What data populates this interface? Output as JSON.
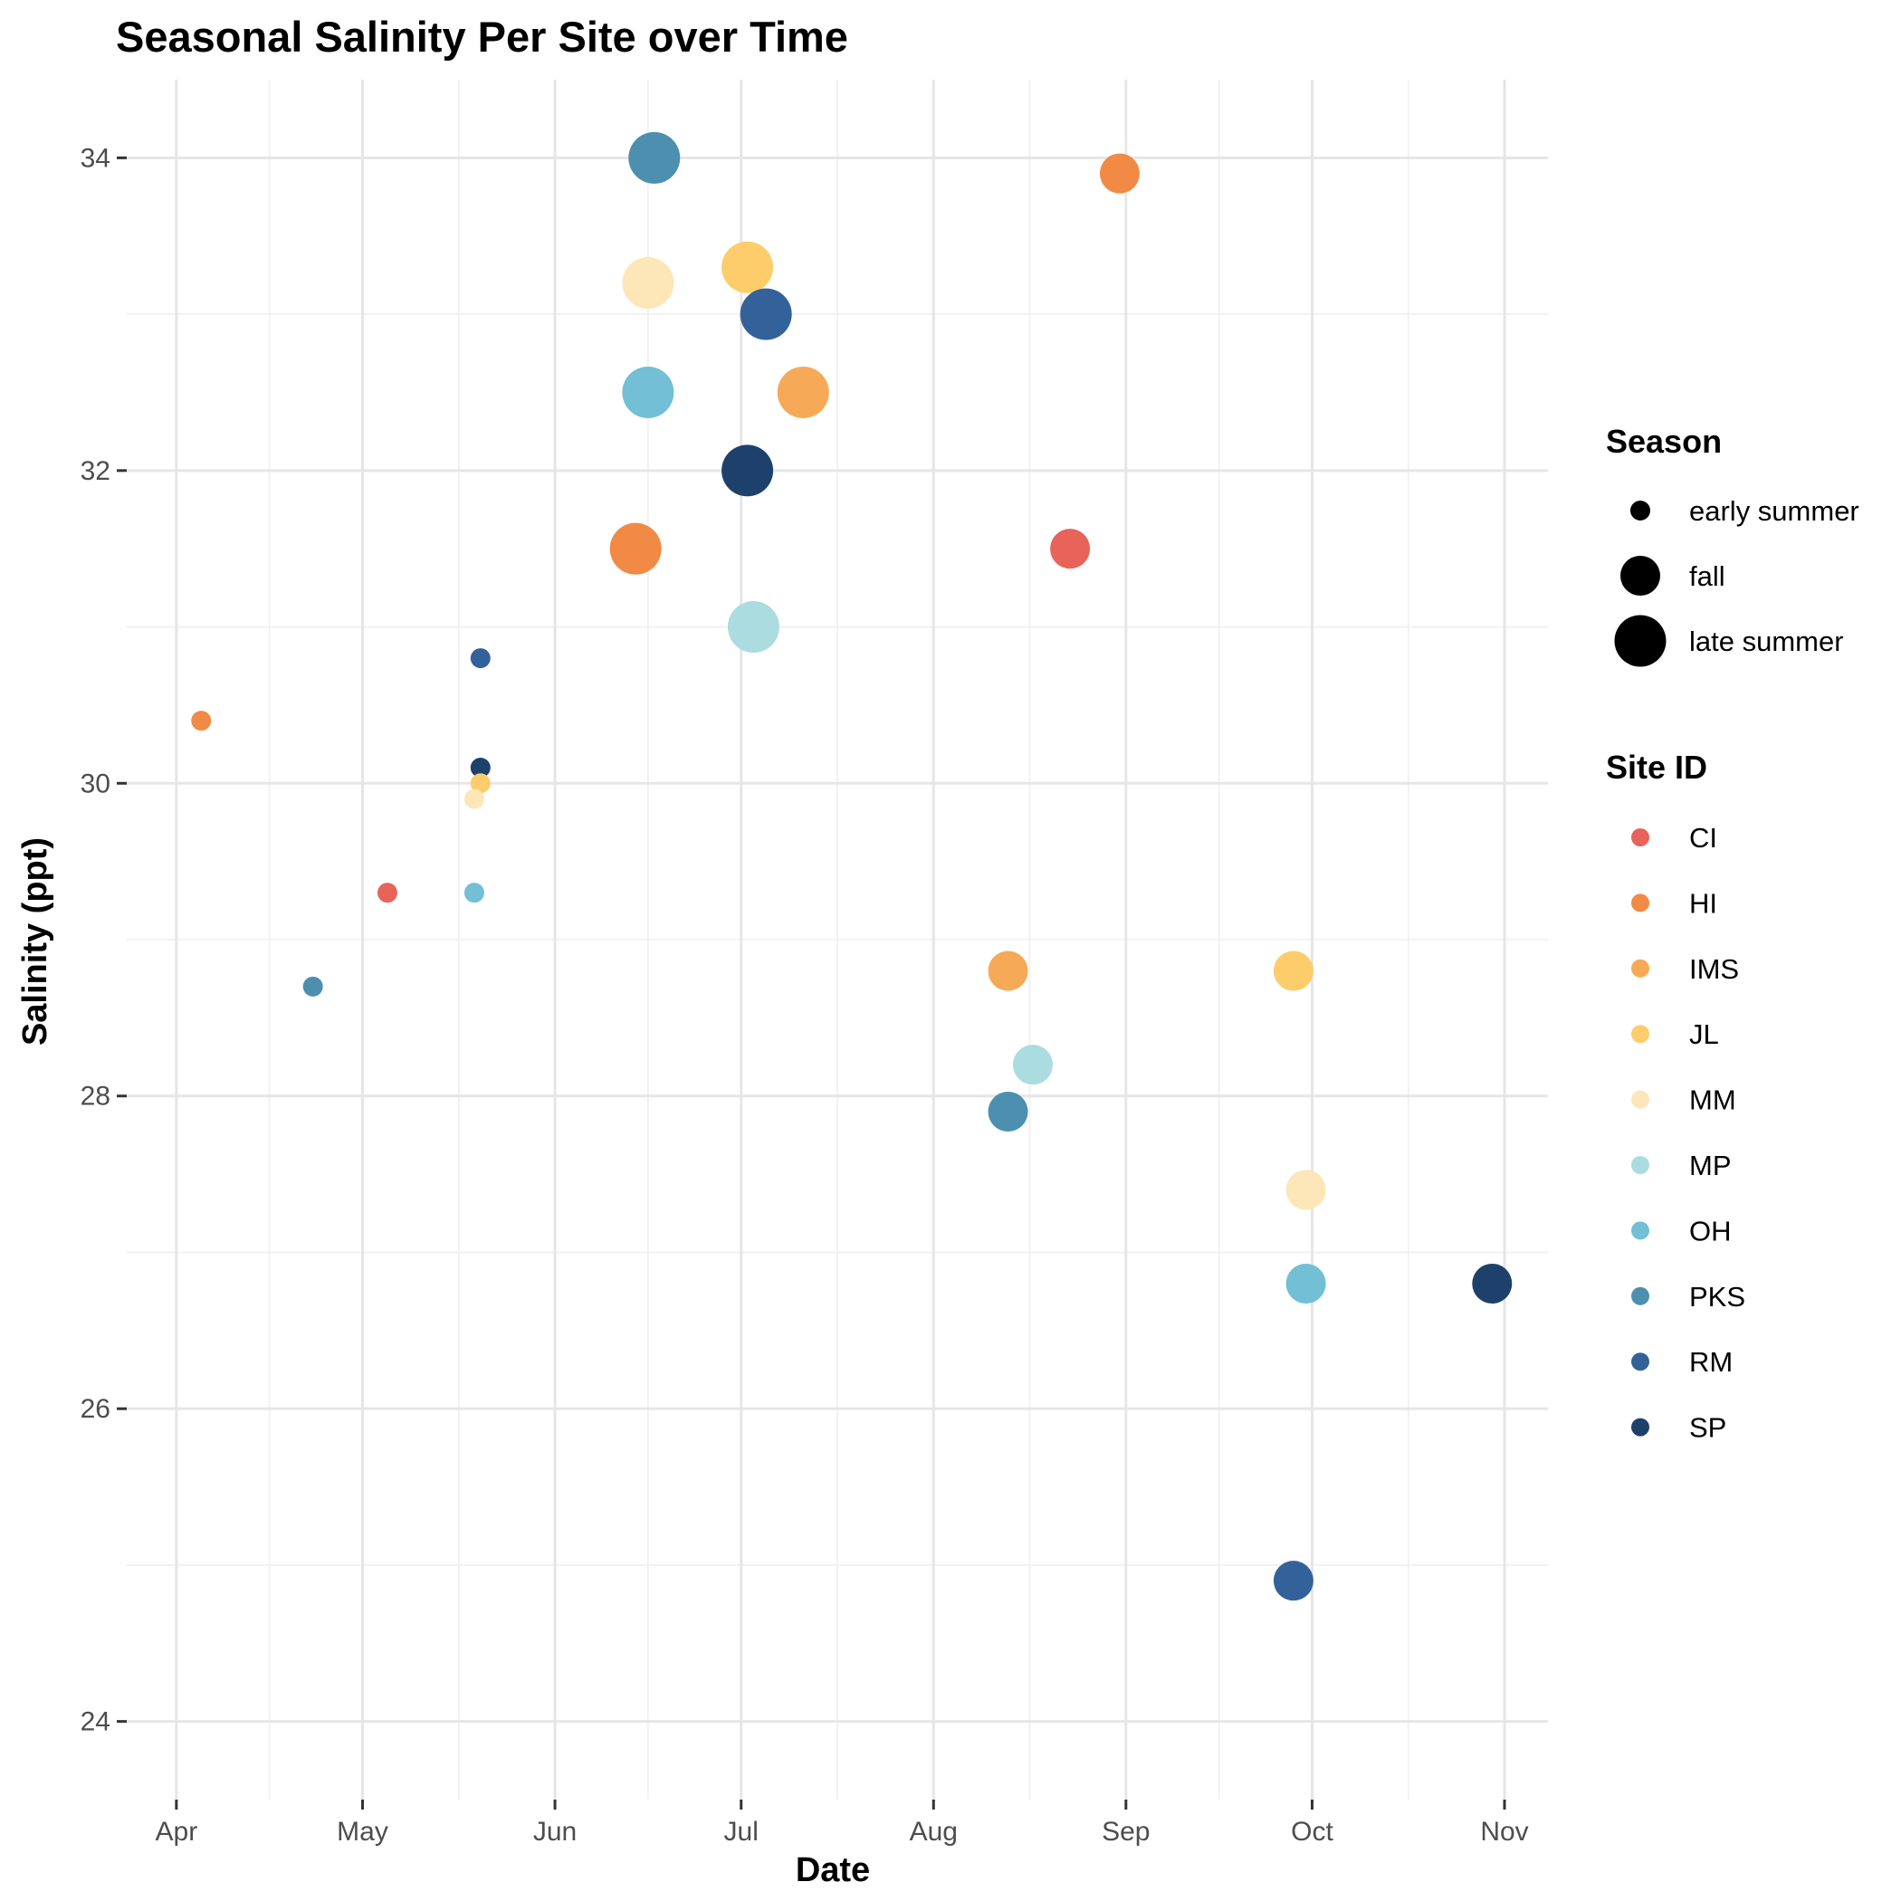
{
  "chart_data": {
    "type": "scatter",
    "title": "Seasonal Salinity Per Site over Time",
    "xlabel": "Date",
    "ylabel": "Salinity (ppt)",
    "x_ticks": [
      "Apr",
      "May",
      "Jun",
      "Jul",
      "Aug",
      "Sep",
      "Oct",
      "Nov"
    ],
    "x_tick_dates": [
      "2023-04-01",
      "2023-05-01",
      "2023-06-01",
      "2023-07-01",
      "2023-08-01",
      "2023-09-01",
      "2023-10-01",
      "2023-11-01"
    ],
    "y_ticks": [
      24,
      26,
      28,
      30,
      32,
      34
    ],
    "xlim": [
      "2023-03-24",
      "2023-11-08"
    ],
    "ylim": [
      23.5,
      34.5
    ],
    "grid": true,
    "legend_placement": "right",
    "size_legend": {
      "title": "Season",
      "entries": [
        {
          "label": "early summer",
          "key": "early summer"
        },
        {
          "label": "fall",
          "key": "fall"
        },
        {
          "label": "late summer",
          "key": "late summer"
        }
      ]
    },
    "color_legend": {
      "title": "Site ID",
      "entries": [
        {
          "label": "CI",
          "color": "#e8635a"
        },
        {
          "label": "HI",
          "color": "#f08a45"
        },
        {
          "label": "IMS",
          "color": "#f6aa58"
        },
        {
          "label": "JL",
          "color": "#fdcd6b"
        },
        {
          "label": "MM",
          "color": "#fde6b8"
        },
        {
          "label": "MP",
          "color": "#abdcdf"
        },
        {
          "label": "OH",
          "color": "#72bfd6"
        },
        {
          "label": "PKS",
          "color": "#4d8fae"
        },
        {
          "label": "RM",
          "color": "#33629a"
        },
        {
          "label": "SP",
          "color": "#1e416c"
        }
      ]
    },
    "points": [
      {
        "site": "HI",
        "date": "2023-04-05",
        "salinity": 30.4,
        "season": "early summer"
      },
      {
        "site": "PKS",
        "date": "2023-04-23",
        "salinity": 28.7,
        "season": "early summer"
      },
      {
        "site": "CI",
        "date": "2023-05-05",
        "salinity": 29.3,
        "season": "early summer"
      },
      {
        "site": "RM",
        "date": "2023-05-20",
        "salinity": 30.8,
        "season": "early summer"
      },
      {
        "site": "SP",
        "date": "2023-05-20",
        "salinity": 30.1,
        "season": "early summer"
      },
      {
        "site": "JL",
        "date": "2023-05-20",
        "salinity": 30.0,
        "season": "early summer"
      },
      {
        "site": "MM",
        "date": "2023-05-19",
        "salinity": 29.9,
        "season": "early summer"
      },
      {
        "site": "OH",
        "date": "2023-05-19",
        "salinity": 29.3,
        "season": "early summer"
      },
      {
        "site": "PKS",
        "date": "2023-06-17",
        "salinity": 34.0,
        "season": "late summer"
      },
      {
        "site": "MM",
        "date": "2023-06-16",
        "salinity": 33.2,
        "season": "late summer"
      },
      {
        "site": "OH",
        "date": "2023-06-16",
        "salinity": 32.5,
        "season": "late summer"
      },
      {
        "site": "HI",
        "date": "2023-06-14",
        "salinity": 31.5,
        "season": "late summer"
      },
      {
        "site": "JL",
        "date": "2023-07-02",
        "salinity": 33.3,
        "season": "late summer"
      },
      {
        "site": "RM",
        "date": "2023-07-05",
        "salinity": 33.0,
        "season": "late summer"
      },
      {
        "site": "IMS",
        "date": "2023-07-11",
        "salinity": 32.5,
        "season": "late summer"
      },
      {
        "site": "SP",
        "date": "2023-07-02",
        "salinity": 32.0,
        "season": "late summer"
      },
      {
        "site": "MP",
        "date": "2023-07-03",
        "salinity": 31.0,
        "season": "late summer"
      },
      {
        "site": "HI",
        "date": "2023-08-31",
        "salinity": 33.9,
        "season": "fall"
      },
      {
        "site": "CI",
        "date": "2023-08-23",
        "salinity": 31.5,
        "season": "fall"
      },
      {
        "site": "IMS",
        "date": "2023-08-13",
        "salinity": 28.8,
        "season": "fall"
      },
      {
        "site": "MP",
        "date": "2023-08-17",
        "salinity": 28.2,
        "season": "fall"
      },
      {
        "site": "PKS",
        "date": "2023-08-13",
        "salinity": 27.9,
        "season": "fall"
      },
      {
        "site": "JL",
        "date": "2023-09-28",
        "salinity": 28.8,
        "season": "fall"
      },
      {
        "site": "MM",
        "date": "2023-09-30",
        "salinity": 27.4,
        "season": "fall"
      },
      {
        "site": "OH",
        "date": "2023-09-30",
        "salinity": 26.8,
        "season": "fall"
      },
      {
        "site": "RM",
        "date": "2023-09-28",
        "salinity": 24.9,
        "season": "fall"
      },
      {
        "site": "SP",
        "date": "2023-10-30",
        "salinity": 26.8,
        "season": "fall"
      }
    ]
  }
}
